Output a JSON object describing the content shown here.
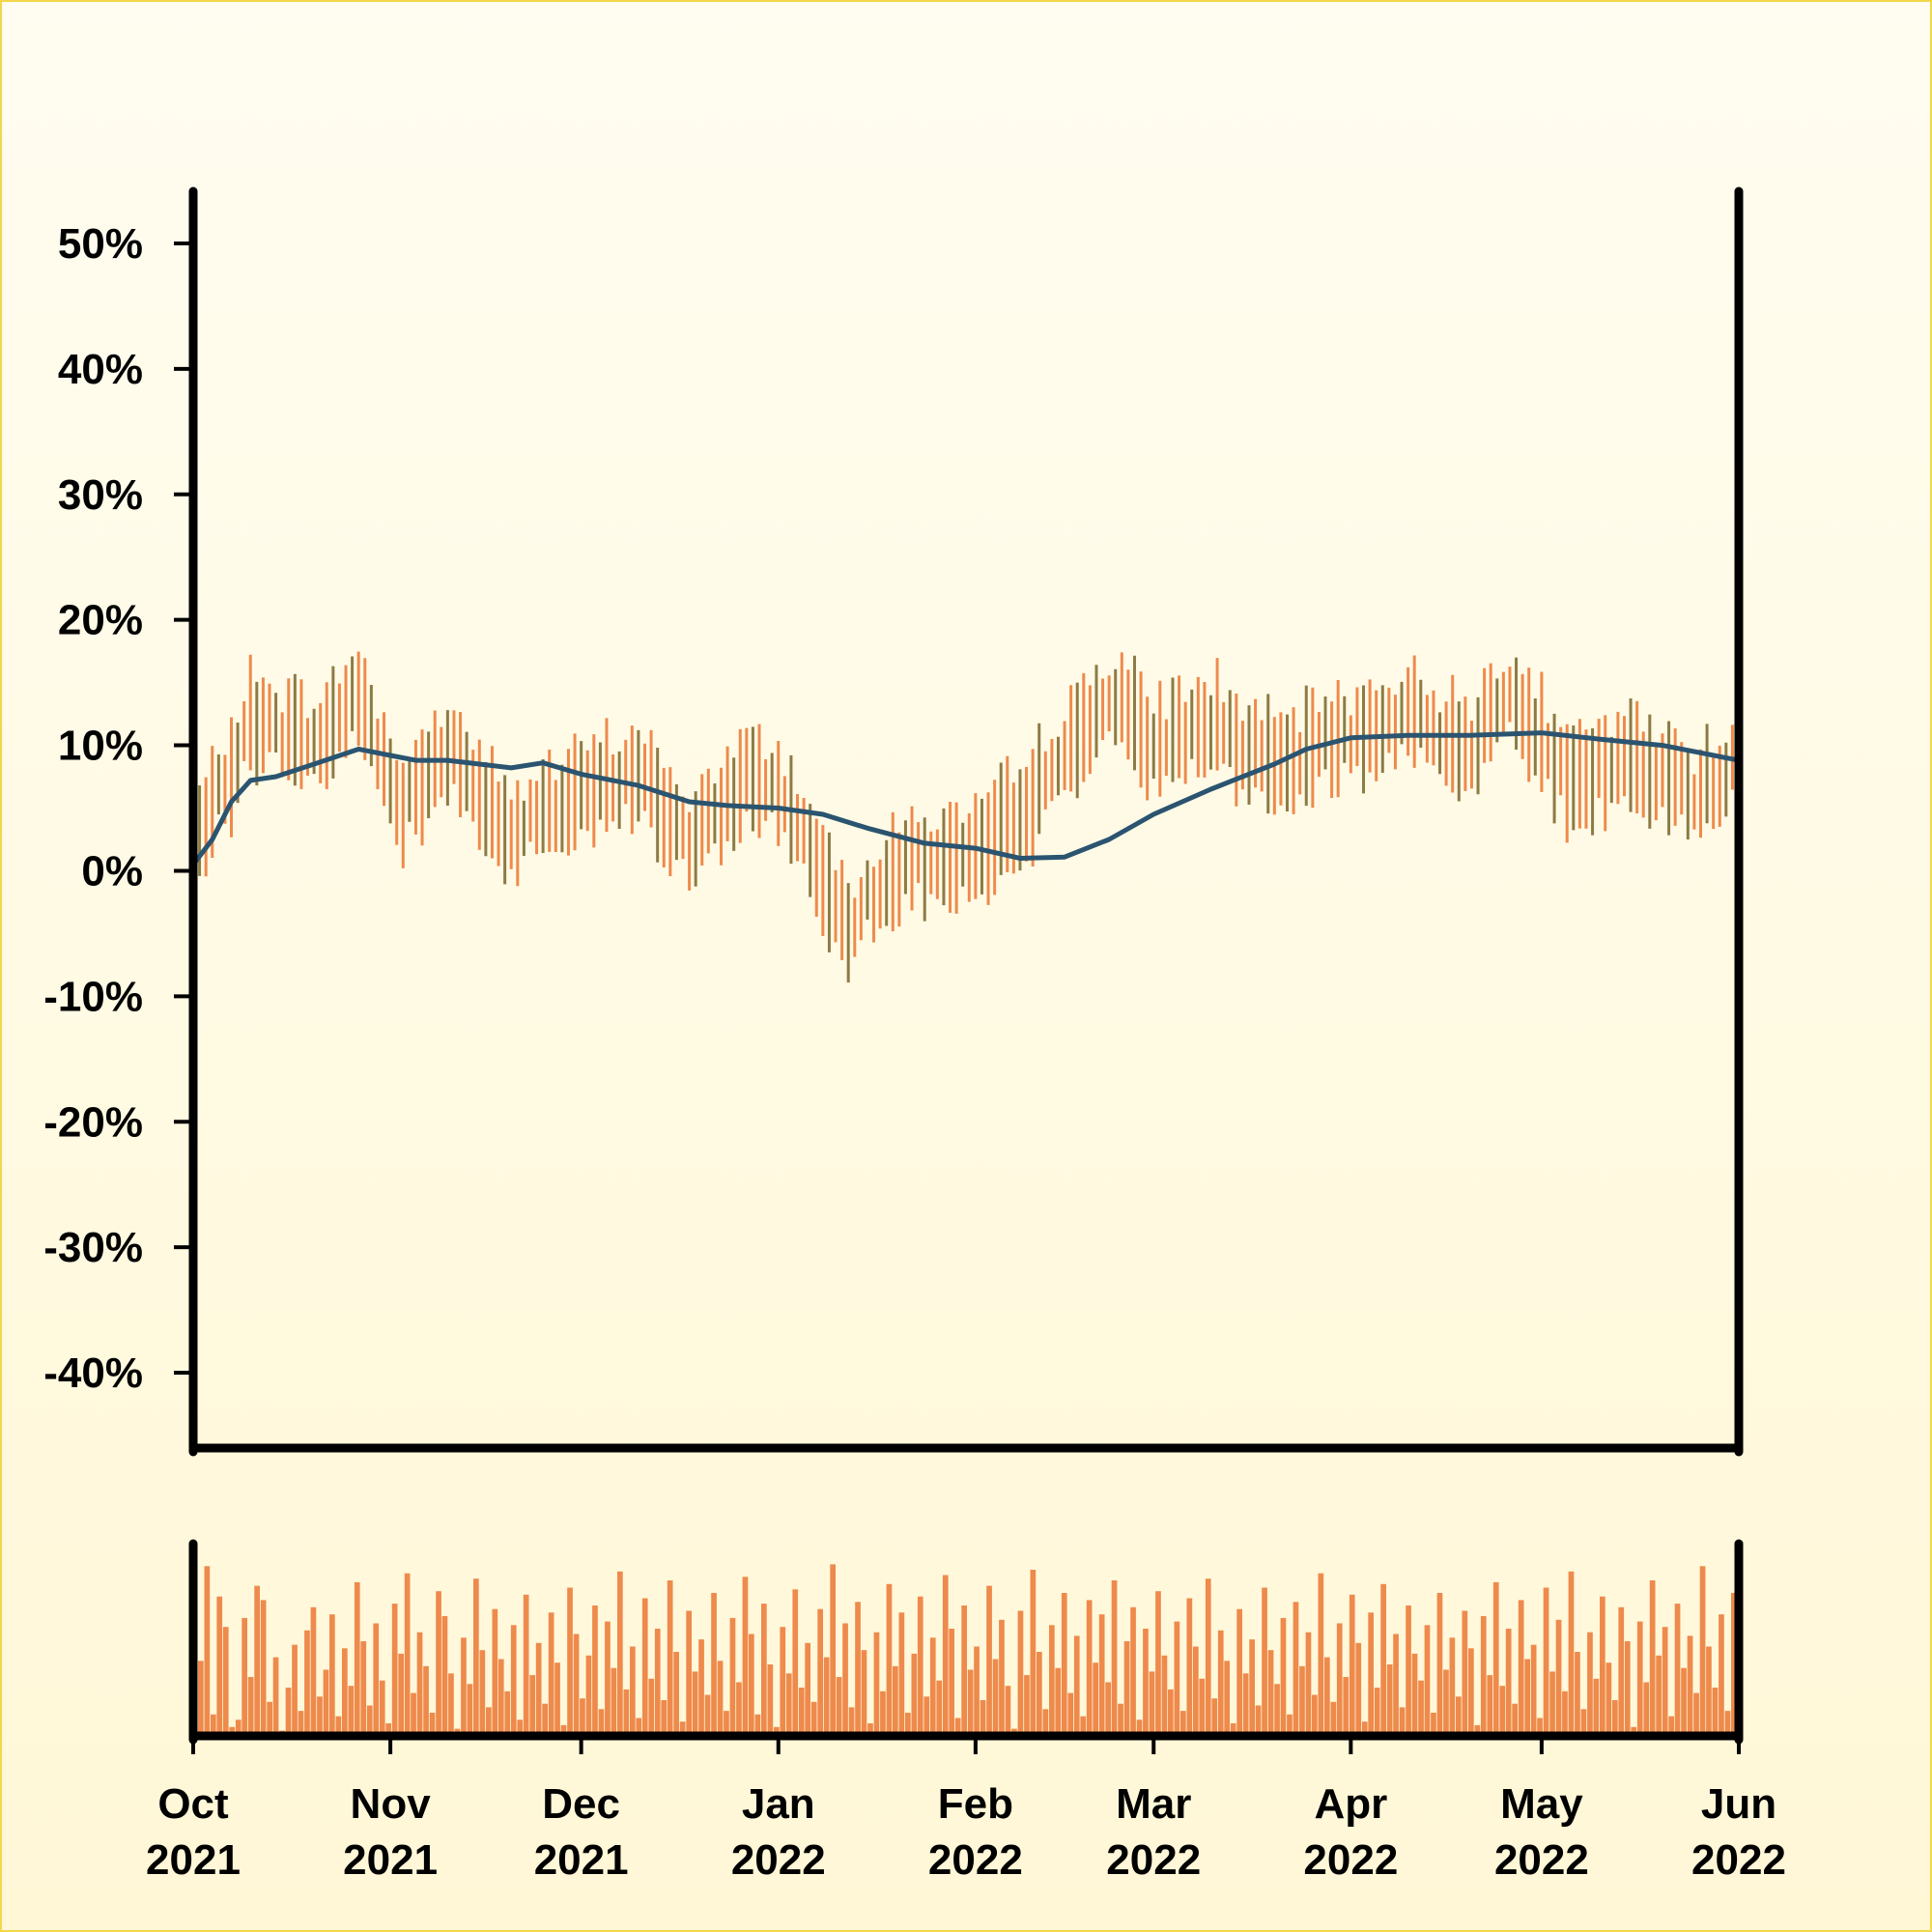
{
  "chart_data": {
    "type": "ohlc",
    "title": "",
    "xlabel": "",
    "ylabel": "",
    "x_range": [
      "2021-10-01",
      "2022-06-01"
    ],
    "ylim": [
      -0.46,
      0.54
    ],
    "y_ticks": [
      {
        "value": 0.5,
        "label": "50%"
      },
      {
        "value": 0.4,
        "label": "40%"
      },
      {
        "value": 0.3,
        "label": "30%"
      },
      {
        "value": 0.2,
        "label": "20%"
      },
      {
        "value": 0.1,
        "label": "10%"
      },
      {
        "value": 0.0,
        "label": "0%"
      },
      {
        "value": -0.1,
        "label": "-10%"
      },
      {
        "value": -0.2,
        "label": "-20%"
      },
      {
        "value": -0.3,
        "label": "-30%"
      },
      {
        "value": -0.4,
        "label": "-40%"
      }
    ],
    "x_ticks": [
      {
        "date": "2021-10-01",
        "month": "Oct",
        "year": "2021"
      },
      {
        "date": "2021-11-01",
        "month": "Nov",
        "year": "2021"
      },
      {
        "date": "2021-12-01",
        "month": "Dec",
        "year": "2021"
      },
      {
        "date": "2022-01-01",
        "month": "Jan",
        "year": "2022"
      },
      {
        "date": "2022-02-01",
        "month": "Feb",
        "year": "2022"
      },
      {
        "date": "2022-03-01",
        "month": "Mar",
        "year": "2022"
      },
      {
        "date": "2022-04-01",
        "month": "Apr",
        "year": "2022"
      },
      {
        "date": "2022-05-01",
        "month": "May",
        "year": "2022"
      },
      {
        "date": "2022-06-01",
        "month": "Jun",
        "year": "2022"
      }
    ],
    "colors": {
      "up": "#ee8a4c",
      "down": "#8d7b45",
      "moving_average": "#2a5470",
      "volume": "#ee8a4c",
      "axis": "#000000"
    },
    "grid": false,
    "price_path_anchors": [
      {
        "date": "2021-10-01",
        "value": 0.01
      },
      {
        "date": "2021-10-10",
        "value": 0.12
      },
      {
        "date": "2021-10-20",
        "value": 0.1
      },
      {
        "date": "2021-10-27",
        "value": 0.14
      },
      {
        "date": "2021-11-03",
        "value": 0.05
      },
      {
        "date": "2021-11-10",
        "value": 0.1
      },
      {
        "date": "2021-11-20",
        "value": 0.03
      },
      {
        "date": "2021-12-01",
        "value": 0.06
      },
      {
        "date": "2021-12-10",
        "value": 0.08
      },
      {
        "date": "2021-12-18",
        "value": 0.02
      },
      {
        "date": "2021-12-28",
        "value": 0.08
      },
      {
        "date": "2022-01-03",
        "value": 0.05
      },
      {
        "date": "2022-01-12",
        "value": -0.04
      },
      {
        "date": "2022-01-22",
        "value": 0.01
      },
      {
        "date": "2022-02-01",
        "value": 0.01
      },
      {
        "date": "2022-02-10",
        "value": 0.06
      },
      {
        "date": "2022-02-22",
        "value": 0.14
      },
      {
        "date": "2022-03-01",
        "value": 0.1
      },
      {
        "date": "2022-03-10",
        "value": 0.12
      },
      {
        "date": "2022-03-20",
        "value": 0.08
      },
      {
        "date": "2022-04-01",
        "value": 0.11
      },
      {
        "date": "2022-04-10",
        "value": 0.12
      },
      {
        "date": "2022-04-20",
        "value": 0.1
      },
      {
        "date": "2022-04-26",
        "value": 0.15
      },
      {
        "date": "2022-05-05",
        "value": 0.07
      },
      {
        "date": "2022-05-15",
        "value": 0.09
      },
      {
        "date": "2022-05-25",
        "value": 0.06
      },
      {
        "date": "2022-06-01",
        "value": 0.09
      }
    ],
    "moving_average": [
      {
        "date": "2021-10-01",
        "value": 0.005
      },
      {
        "date": "2021-10-04",
        "value": 0.025
      },
      {
        "date": "2021-10-07",
        "value": 0.055
      },
      {
        "date": "2021-10-10",
        "value": 0.072
      },
      {
        "date": "2021-10-14",
        "value": 0.075
      },
      {
        "date": "2021-10-20",
        "value": 0.085
      },
      {
        "date": "2021-10-27",
        "value": 0.097
      },
      {
        "date": "2021-11-01",
        "value": 0.092
      },
      {
        "date": "2021-11-05",
        "value": 0.088
      },
      {
        "date": "2021-11-10",
        "value": 0.088
      },
      {
        "date": "2021-11-15",
        "value": 0.085
      },
      {
        "date": "2021-11-20",
        "value": 0.082
      },
      {
        "date": "2021-11-25",
        "value": 0.086
      },
      {
        "date": "2021-12-01",
        "value": 0.077
      },
      {
        "date": "2021-12-10",
        "value": 0.068
      },
      {
        "date": "2021-12-18",
        "value": 0.055
      },
      {
        "date": "2021-12-24",
        "value": 0.052
      },
      {
        "date": "2022-01-01",
        "value": 0.05
      },
      {
        "date": "2022-01-08",
        "value": 0.045
      },
      {
        "date": "2022-01-15",
        "value": 0.034
      },
      {
        "date": "2022-01-24",
        "value": 0.022
      },
      {
        "date": "2022-02-01",
        "value": 0.018
      },
      {
        "date": "2022-02-08",
        "value": 0.01
      },
      {
        "date": "2022-02-15",
        "value": 0.011
      },
      {
        "date": "2022-02-22",
        "value": 0.025
      },
      {
        "date": "2022-03-01",
        "value": 0.045
      },
      {
        "date": "2022-03-10",
        "value": 0.065
      },
      {
        "date": "2022-03-20",
        "value": 0.085
      },
      {
        "date": "2022-03-25",
        "value": 0.097
      },
      {
        "date": "2022-04-01",
        "value": 0.106
      },
      {
        "date": "2022-04-10",
        "value": 0.108
      },
      {
        "date": "2022-04-20",
        "value": 0.108
      },
      {
        "date": "2022-05-01",
        "value": 0.11
      },
      {
        "date": "2022-05-10",
        "value": 0.105
      },
      {
        "date": "2022-05-20",
        "value": 0.1
      },
      {
        "date": "2022-06-01",
        "value": 0.088
      }
    ],
    "volume_levels": [
      0.42,
      0.95,
      0.12,
      0.78,
      0.61,
      0.05,
      0.09,
      0.66,
      0.33,
      0.84,
      0.76,
      0.19,
      0.44,
      0.03,
      0.27,
      0.51,
      0.14,
      0.59,
      0.72,
      0.22,
      0.37,
      0.68,
      0.11,
      0.49,
      0.28,
      0.86,
      0.53,
      0.17,
      0.63,
      0.31,
      0.07,
      0.74,
      0.46,
      0.91,
      0.24,
      0.58,
      0.39,
      0.13,
      0.81,
      0.67,
      0.35,
      0.04,
      0.55,
      0.29,
      0.88,
      0.48,
      0.16,
      0.71,
      0.43,
      0.25,
      0.62,
      0.09,
      0.79,
      0.34,
      0.52,
      0.18,
      0.69,
      0.41,
      0.06,
      0.83,
      0.57,
      0.21,
      0.45,
      0.73,
      0.15,
      0.64,
      0.38,
      0.92,
      0.26,
      0.5,
      0.1,
      0.77,
      0.32,
      0.6,
      0.2,
      0.87,
      0.47,
      0.08,
      0.7,
      0.36,
      0.54,
      0.23,
      0.8,
      0.42,
      0.14,
      0.66,
      0.3,
      0.89,
      0.57,
      0.12,
      0.74,
      0.4,
      0.05,
      0.61,
      0.35,
      0.82,
      0.27,
      0.52,
      0.19,
      0.71,
      0.44,
      0.96,
      0.33,
      0.63,
      0.16,
      0.75,
      0.48,
      0.07,
      0.58,
      0.25,
      0.85,
      0.39,
      0.69,
      0.13,
      0.46,
      0.78,
      0.22,
      0.55,
      0.31,
      0.9,
      0.6,
      0.1,
      0.73,
      0.37,
      0.5,
      0.2,
      0.84,
      0.43,
      0.65,
      0.28,
      0.04,
      0.7,
      0.34,
      0.93,
      0.47,
      0.15,
      0.62,
      0.38,
      0.8,
      0.24,
      0.56,
      0.11,
      0.76,
      0.41,
      0.68,
      0.3,
      0.87,
      0.18,
      0.53,
      0.72,
      0.09,
      0.6,
      0.36,
      0.81,
      0.45,
      0.26,
      0.64,
      0.14,
      0.77,
      0.5,
      0.32,
      0.88,
      0.21,
      0.59,
      0.42,
      0.07,
      0.71,
      0.35,
      0.54,
      0.17,
      0.83,
      0.48,
      0.29,
      0.66,
      0.12,
      0.75,
      0.39,
      0.58,
      0.23,
      0.91,
      0.44,
      0.19,
      0.63,
      0.33,
      0.79,
      0.52,
      0.08,
      0.69,
      0.27,
      0.85,
      0.4,
      0.57,
      0.16,
      0.73,
      0.46,
      0.31,
      0.62,
      0.13,
      0.8,
      0.37,
      0.55,
      0.22,
      0.7,
      0.49,
      0.06,
      0.67,
      0.34,
      0.86,
      0.28,
      0.6,
      0.18,
      0.76,
      0.43,
      0.51,
      0.1,
      0.83,
      0.36,
      0.65,
      0.25,
      0.92,
      0.47,
      0.15,
      0.58,
      0.32,
      0.78,
      0.41,
      0.2,
      0.72,
      0.53,
      0.05,
      0.64,
      0.3,
      0.87,
      0.45,
      0.61,
      0.11,
      0.74,
      0.38,
      0.56,
      0.24,
      0.95,
      0.5,
      0.27,
      0.68,
      0.14,
      0.8,
      0.42
    ]
  }
}
